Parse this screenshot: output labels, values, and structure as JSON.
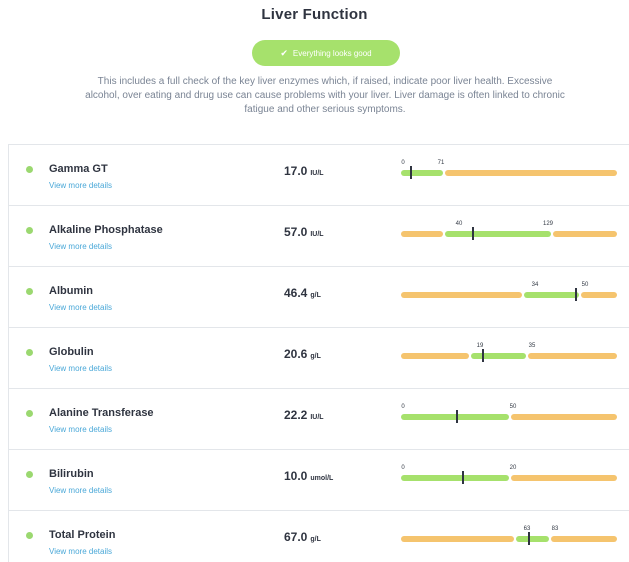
{
  "page": {
    "title": "Liver Function",
    "status_badge": "Everything looks good",
    "intro": "This includes a full check of the key liver enzymes which, if raised, indicate poor liver health. Excessive alcohol, over eating and drug use can cause problems with your liver. Liver damage is often linked to chronic fatigue and other serious symptoms."
  },
  "colors": {
    "normal": "#a6e16c",
    "out_of_range": "#f5c46e",
    "link": "#4aa8d8",
    "status_dot": "#9bd870"
  },
  "tests": [
    {
      "name": "Gamma GT",
      "link": "View more details",
      "value": "17.0",
      "unit": "IU/L",
      "low_label": "0",
      "high_label": "71",
      "range_low": 0,
      "range_high": 71,
      "reading": 17.0
    },
    {
      "name": "Alkaline Phosphatase",
      "link": "View more details",
      "value": "57.0",
      "unit": "IU/L",
      "low_label": "40",
      "high_label": "129",
      "range_low": 40,
      "range_high": 129,
      "reading": 57.0
    },
    {
      "name": "Albumin",
      "link": "View more details",
      "value": "46.4",
      "unit": "g/L",
      "low_label": "34",
      "high_label": "50",
      "range_low": 34,
      "range_high": 50,
      "reading": 46.4
    },
    {
      "name": "Globulin",
      "link": "View more details",
      "value": "20.6",
      "unit": "g/L",
      "low_label": "19",
      "high_label": "35",
      "range_low": 19,
      "range_high": 35,
      "reading": 20.6
    },
    {
      "name": "Alanine Transferase",
      "link": "View more details",
      "value": "22.2",
      "unit": "IU/L",
      "low_label": "0",
      "high_label": "50",
      "range_low": 0,
      "range_high": 50,
      "reading": 22.2
    },
    {
      "name": "Bilirubin",
      "link": "View more details",
      "value": "10.0",
      "unit": "umol/L",
      "low_label": "0",
      "high_label": "20",
      "range_low": 0,
      "range_high": 20,
      "reading": 10.0
    },
    {
      "name": "Total Protein",
      "link": "View more details",
      "value": "67.0",
      "unit": "g/L",
      "low_label": "63",
      "high_label": "83",
      "range_low": 63,
      "range_high": 83,
      "reading": 67.0
    }
  ]
}
